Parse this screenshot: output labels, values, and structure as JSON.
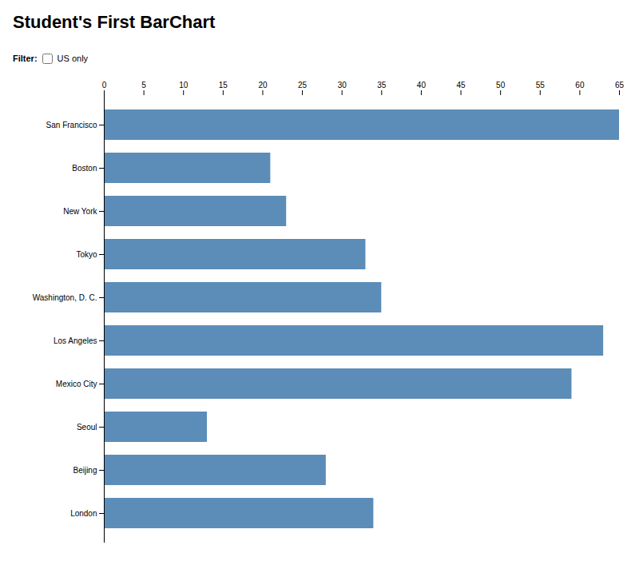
{
  "chart_data": {
    "type": "bar",
    "title": "Student's First BarChart",
    "annotations": [
      "Filter:",
      "US only"
    ],
    "orientation": "horizontal",
    "categories": [
      "San Francisco",
      "Boston",
      "New York",
      "Tokyo",
      "Washington, D. C.",
      "Los Angeles",
      "Mexico City",
      "Seoul",
      "Beijing",
      "London"
    ],
    "values": [
      65,
      21,
      23,
      33,
      35,
      63,
      59,
      13,
      28,
      34
    ],
    "color": "#5b8db8",
    "xlim": [
      0,
      65
    ],
    "xticks": [
      0,
      5,
      10,
      15,
      20,
      25,
      30,
      35,
      40,
      45,
      50,
      55,
      60,
      65
    ],
    "grid": false
  }
}
